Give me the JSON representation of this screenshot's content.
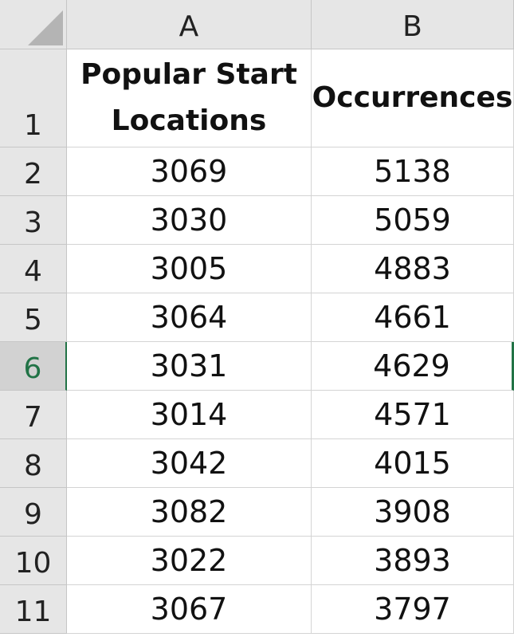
{
  "columns": [
    "A",
    "B"
  ],
  "header_row": {
    "row_number": "1",
    "col_a": "Popular Start\nLocations",
    "col_b": "Occurrences"
  },
  "selected_row_number": "6",
  "rows": [
    {
      "row_number": "2",
      "start_location": "3069",
      "occurrences": "5138"
    },
    {
      "row_number": "3",
      "start_location": "3030",
      "occurrences": "5059"
    },
    {
      "row_number": "4",
      "start_location": "3005",
      "occurrences": "4883"
    },
    {
      "row_number": "5",
      "start_location": "3064",
      "occurrences": "4661"
    },
    {
      "row_number": "6",
      "start_location": "3031",
      "occurrences": "4629"
    },
    {
      "row_number": "7",
      "start_location": "3014",
      "occurrences": "4571"
    },
    {
      "row_number": "8",
      "start_location": "3042",
      "occurrences": "4015"
    },
    {
      "row_number": "9",
      "start_location": "3082",
      "occurrences": "3908"
    },
    {
      "row_number": "10",
      "start_location": "3022",
      "occurrences": "3893"
    },
    {
      "row_number": "11",
      "start_location": "3067",
      "occurrences": "3797"
    }
  ],
  "colors": {
    "selection_accent": "#217346",
    "header_background": "#e6e6e6"
  }
}
